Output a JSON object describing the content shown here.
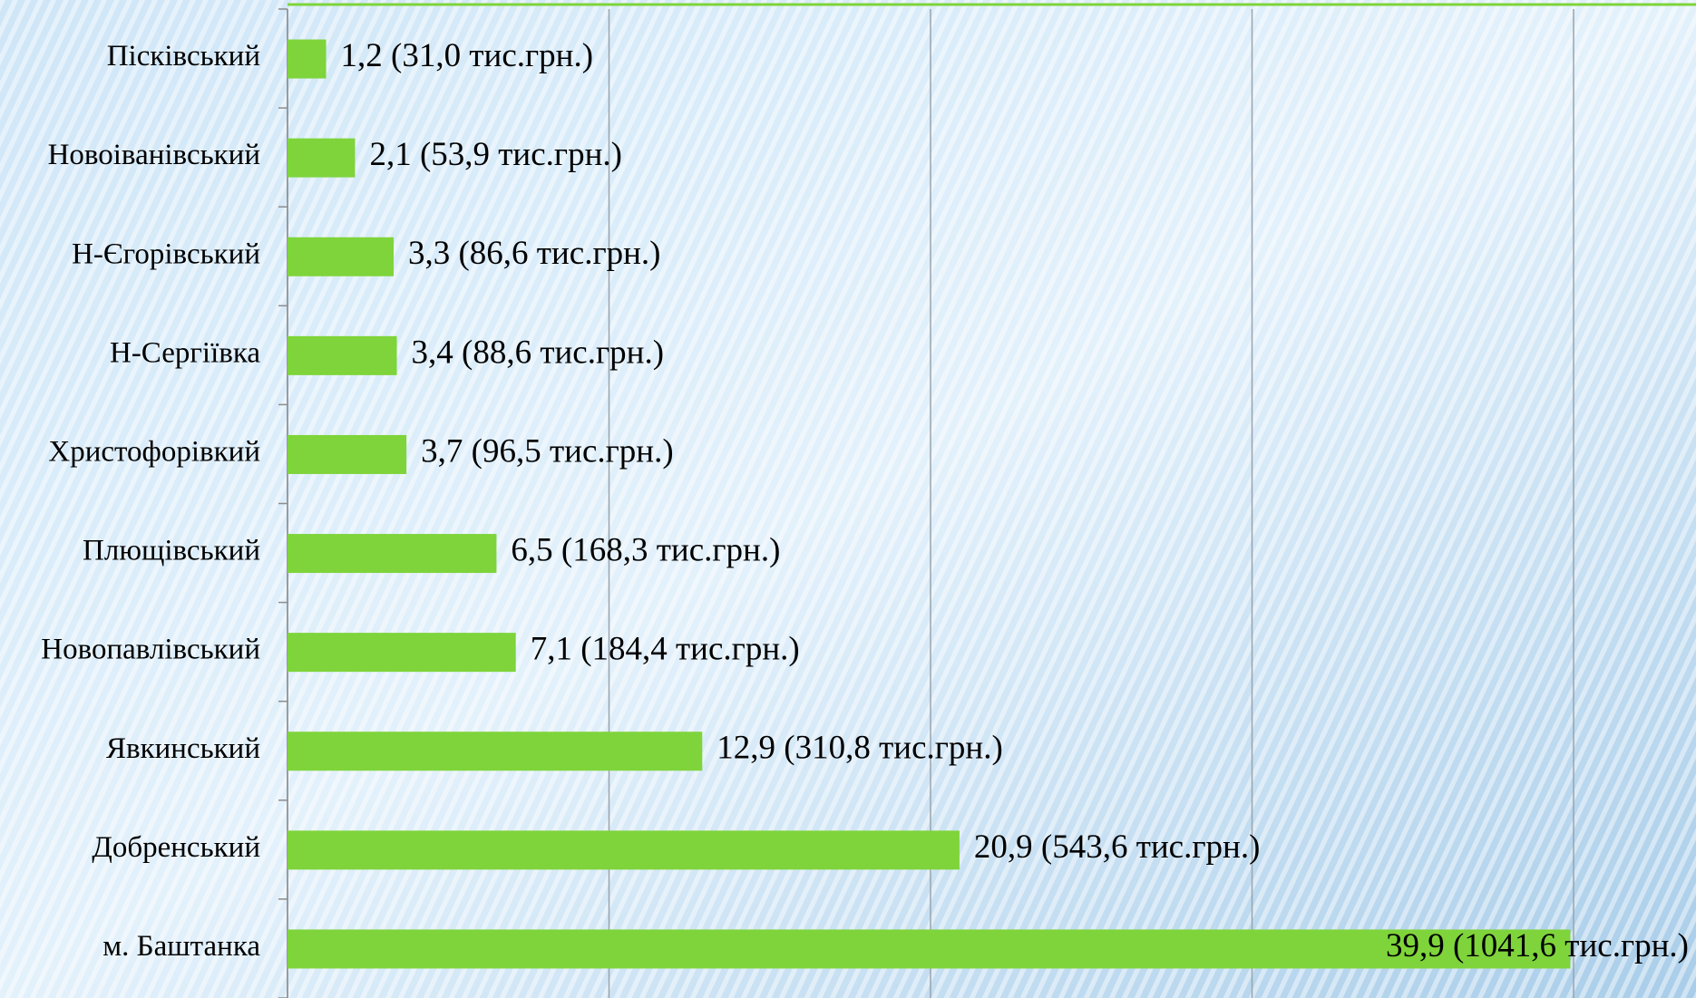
{
  "chart_data": {
    "type": "bar",
    "orientation": "horizontal",
    "categories": [
      "Пісківський",
      "Новоіванівський",
      "Н-Єгорівський",
      "Н-Сергіївка",
      "Христофорівкий",
      "Плющівський",
      "Новопавлівський",
      "Явкинський",
      "Добренський",
      "м. Баштанка"
    ],
    "values": [
      1.2,
      2.1,
      3.3,
      3.4,
      3.7,
      6.5,
      7.1,
      12.9,
      20.9,
      39.9
    ],
    "value_labels": [
      "1,2 (31,0 тис.грн.)",
      "2,1 (53,9 тис.грн.)",
      "3,3 (86,6 тис.грн.)",
      "3,4 (88,6 тис.грн.)",
      "3,7 (96,5 тис.грн.)",
      "6,5 (168,3 тис.грн.)",
      "7,1 (184,4 тис.грн.)",
      "12,9 (310,8 тис.грн.)",
      "20,9 (543,6 тис.грн.)",
      "39,9 (1041,6 тис.грн.)"
    ],
    "color": "#7ed43a",
    "xlim": [
      0,
      40
    ],
    "xticks": [
      0,
      10,
      20,
      30,
      40
    ],
    "grid": true
  }
}
